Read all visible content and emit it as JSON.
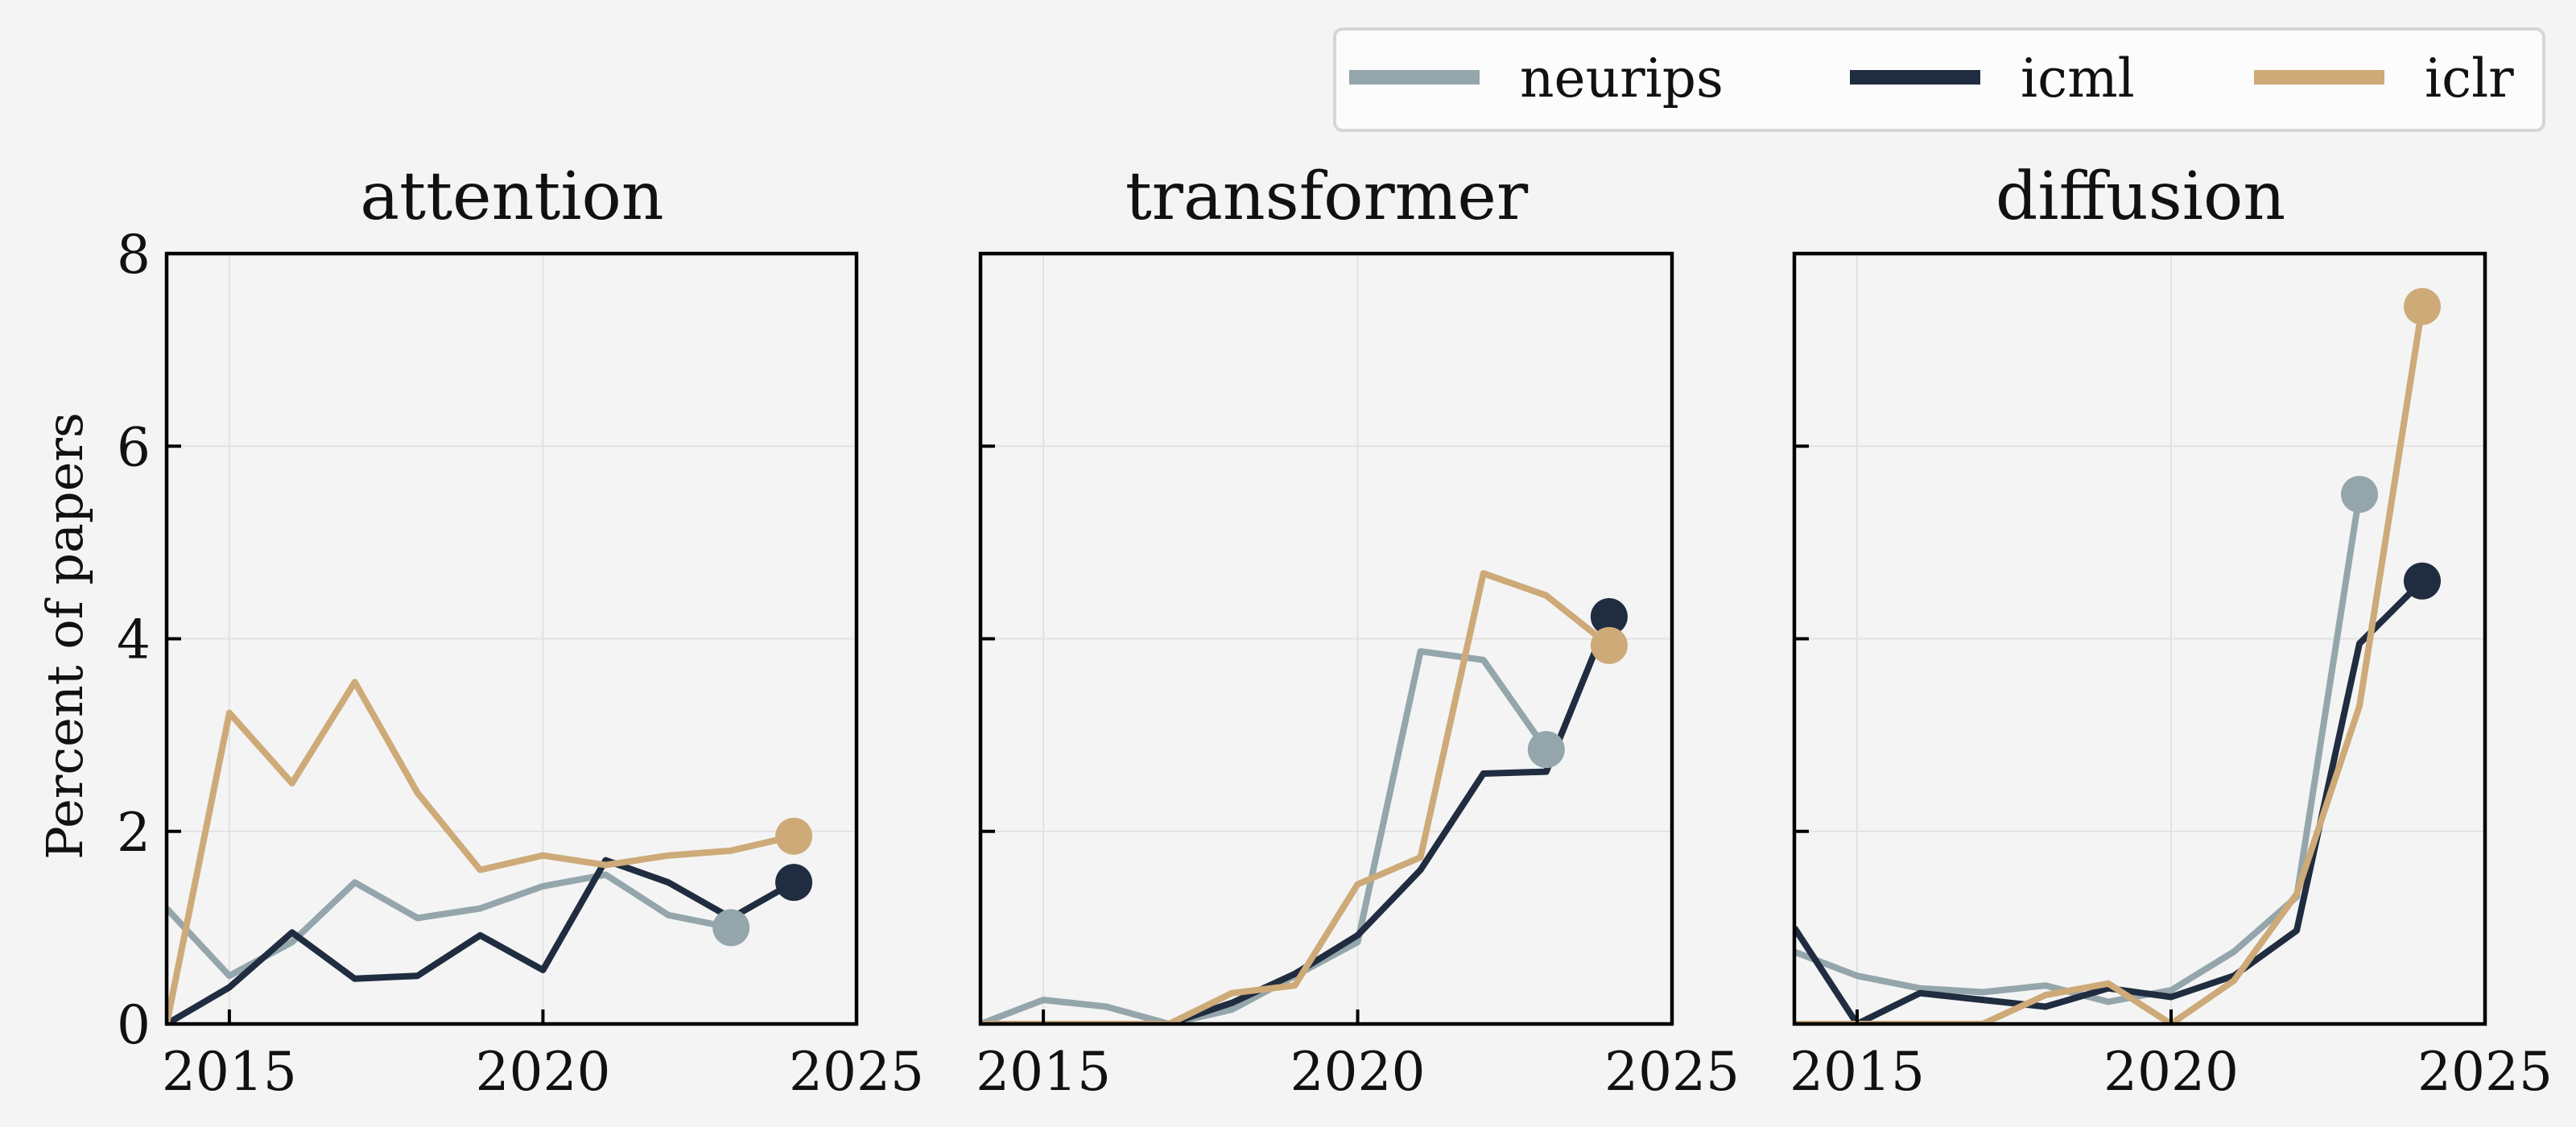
{
  "chart_data": {
    "type": "line",
    "ylabel": "Percent of papers",
    "xlim": [
      2014,
      2025
    ],
    "ylim": [
      0,
      8
    ],
    "xticks": [
      2015,
      2020,
      2025
    ],
    "yticks": [
      0,
      2,
      4,
      6,
      8
    ],
    "grid": true,
    "legend_position": "top-right",
    "series_styles": [
      {
        "name": "neurips",
        "color": "#94a6ab"
      },
      {
        "name": "icml",
        "color": "#202c40"
      },
      {
        "name": "iclr",
        "color": "#cdaa78"
      }
    ],
    "panels": [
      {
        "title": "attention",
        "series": [
          {
            "name": "neurips",
            "x": [
              2014,
              2015,
              2016,
              2017,
              2018,
              2019,
              2020,
              2021,
              2022,
              2023
            ],
            "y": [
              1.2,
              0.5,
              0.85,
              1.47,
              1.1,
              1.2,
              1.43,
              1.55,
              1.13,
              1.0
            ]
          },
          {
            "name": "icml",
            "x": [
              2014,
              2015,
              2016,
              2017,
              2018,
              2019,
              2020,
              2021,
              2022,
              2023,
              2024
            ],
            "y": [
              0.0,
              0.38,
              0.95,
              0.47,
              0.5,
              0.92,
              0.56,
              1.7,
              1.47,
              1.1,
              1.47
            ]
          },
          {
            "name": "iclr",
            "x": [
              2014,
              2015,
              2016,
              2017,
              2018,
              2019,
              2020,
              2021,
              2022,
              2023,
              2024
            ],
            "y": [
              0.0,
              3.23,
              2.5,
              3.55,
              2.4,
              1.6,
              1.75,
              1.65,
              1.75,
              1.8,
              1.95
            ]
          }
        ]
      },
      {
        "title": "transformer",
        "series": [
          {
            "name": "neurips",
            "x": [
              2014,
              2015,
              2016,
              2017,
              2018,
              2019,
              2020,
              2021,
              2022,
              2023
            ],
            "y": [
              0.0,
              0.25,
              0.18,
              0.0,
              0.15,
              0.5,
              0.85,
              3.87,
              3.78,
              2.85
            ]
          },
          {
            "name": "icml",
            "x": [
              2014,
              2015,
              2016,
              2017,
              2018,
              2019,
              2020,
              2021,
              2022,
              2023,
              2024
            ],
            "y": [
              0.0,
              0.0,
              0.0,
              0.0,
              0.22,
              0.52,
              0.92,
              1.6,
              2.6,
              2.62,
              4.23
            ]
          },
          {
            "name": "iclr",
            "x": [
              2014,
              2015,
              2016,
              2017,
              2018,
              2019,
              2020,
              2021,
              2022,
              2023,
              2024
            ],
            "y": [
              0.0,
              0.0,
              0.0,
              0.0,
              0.32,
              0.4,
              1.45,
              1.73,
              4.68,
              4.45,
              3.93
            ]
          }
        ]
      },
      {
        "title": "diffusion",
        "series": [
          {
            "name": "neurips",
            "x": [
              2014,
              2015,
              2016,
              2017,
              2018,
              2019,
              2020,
              2021,
              2022,
              2023
            ],
            "y": [
              0.75,
              0.5,
              0.37,
              0.33,
              0.4,
              0.23,
              0.35,
              0.75,
              1.32,
              5.5
            ]
          },
          {
            "name": "icml",
            "x": [
              2014,
              2015,
              2016,
              2017,
              2018,
              2019,
              2020,
              2021,
              2022,
              2023,
              2024
            ],
            "y": [
              1.0,
              0.0,
              0.32,
              0.25,
              0.18,
              0.37,
              0.28,
              0.5,
              0.97,
              3.95,
              4.6
            ]
          },
          {
            "name": "iclr",
            "x": [
              2014,
              2015,
              2016,
              2017,
              2018,
              2019,
              2020,
              2021,
              2022,
              2023,
              2024
            ],
            "y": [
              0.0,
              0.0,
              0.0,
              0.0,
              0.3,
              0.42,
              0.0,
              0.45,
              1.35,
              3.3,
              7.45
            ]
          }
        ]
      }
    ]
  }
}
